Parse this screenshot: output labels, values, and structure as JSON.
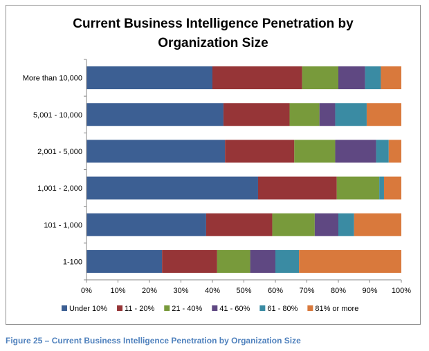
{
  "chart_data": {
    "type": "bar",
    "orientation": "horizontal",
    "stacked": "percent",
    "title": "Current Business Intelligence Penetration by Organization Size",
    "title_lines": [
      "Current Business Intelligence Penetration by",
      "Organization Size"
    ],
    "categories": [
      "More than 10,000",
      "5,001 - 10,000",
      "2,001 - 5,000",
      "1,001 - 2,000",
      "101 - 1,000",
      "1-100"
    ],
    "series": [
      {
        "name": "Under 10%",
        "color": "#3c5f93",
        "values": [
          40,
          43.5,
          44,
          54.5,
          38,
          24
        ]
      },
      {
        "name": "11 - 20%",
        "color": "#963537",
        "values": [
          28.5,
          21,
          22,
          25,
          21,
          17.5
        ]
      },
      {
        "name": "21 - 40%",
        "color": "#789a3b",
        "values": [
          11.5,
          9.5,
          13,
          13.5,
          13.5,
          10.5
        ]
      },
      {
        "name": "41 - 60%",
        "color": "#5f4882",
        "values": [
          8.5,
          5,
          13,
          0,
          7.5,
          8
        ]
      },
      {
        "name": "61 - 80%",
        "color": "#3a8ba3",
        "values": [
          5,
          10,
          4,
          1.5,
          5,
          7.5
        ]
      },
      {
        "name": "81% or more",
        "color": "#d9793c",
        "values": [
          6.5,
          11,
          4,
          5.5,
          15,
          32.5
        ]
      }
    ],
    "xlim": [
      0,
      100
    ],
    "x_ticks": [
      "0%",
      "10%",
      "20%",
      "30%",
      "40%",
      "50%",
      "60%",
      "70%",
      "80%",
      "90%",
      "100%"
    ],
    "xlabel": "",
    "ylabel": "",
    "grid": false,
    "legend_position": "bottom"
  },
  "caption": "Figure 25 – Current Business Intelligence Penetration by Organization Size"
}
